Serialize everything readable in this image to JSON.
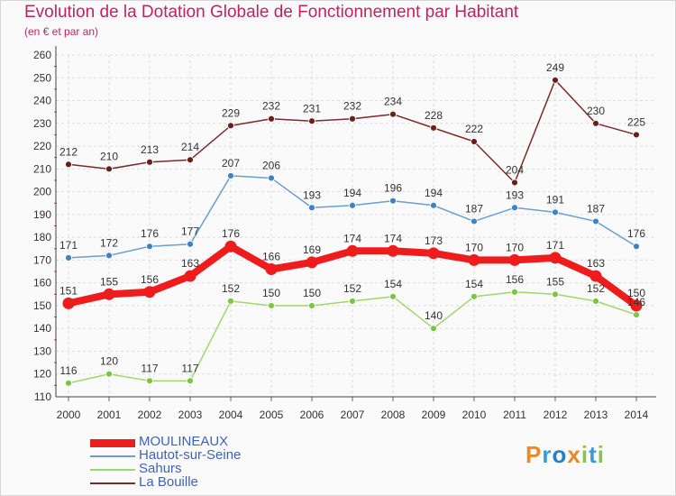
{
  "header": {
    "title": "Evolution de la Dotation Globale de Fonctionnement par Habitant",
    "subtitle": "(en € et par an)"
  },
  "logo": {
    "text": "Proxiti",
    "letters": [
      "P",
      "r",
      "o",
      "x",
      "i",
      "t",
      "i"
    ],
    "colors": [
      "#e8892a",
      "#3b9ad9",
      "#2a7fc4",
      "#e8892a",
      "#8bc34a",
      "#3b9ad9",
      "#8bc34a"
    ]
  },
  "chart_data": {
    "type": "line",
    "title": "Evolution de la Dotation Globale de Fonctionnement par Habitant",
    "subtitle": "(en € et par an)",
    "x": [
      "2000",
      "2001",
      "2002",
      "2003",
      "2004",
      "2005",
      "2006",
      "2007",
      "2008",
      "2009",
      "2010",
      "2011",
      "2012",
      "2013",
      "2014"
    ],
    "ylim": [
      110,
      260
    ],
    "yticks": [
      110,
      120,
      130,
      140,
      150,
      160,
      170,
      180,
      190,
      200,
      210,
      220,
      230,
      240,
      250,
      260
    ],
    "grid": true,
    "legend_position": "bottom-left",
    "series": [
      {
        "name": "MOULINEAUX",
        "color": "#ee1c1c",
        "marker_color": "#ee1c1c",
        "bold": true,
        "values": [
          151,
          155,
          156,
          163,
          176,
          166,
          169,
          174,
          174,
          173,
          170,
          170,
          171,
          163,
          150
        ]
      },
      {
        "name": "Hautot-sur-Seine",
        "color": "#6a9fd0",
        "marker_color": "#3f83c6",
        "bold": false,
        "values": [
          171,
          172,
          176,
          177,
          207,
          206,
          193,
          194,
          196,
          194,
          187,
          193,
          191,
          187,
          176
        ]
      },
      {
        "name": "Sahurs",
        "color": "#9ed86b",
        "marker_color": "#7cc444",
        "bold": false,
        "values": [
          116,
          120,
          117,
          117,
          152,
          150,
          150,
          152,
          154,
          140,
          154,
          156,
          155,
          152,
          146
        ]
      },
      {
        "name": "La Bouille",
        "color": "#7b2b2b",
        "marker_color": "#6a1f1f",
        "bold": false,
        "values": [
          212,
          210,
          213,
          214,
          229,
          232,
          231,
          232,
          234,
          228,
          222,
          204,
          249,
          230,
          225
        ]
      }
    ],
    "data_labels": {
      "MOULINEAUX": [
        "151",
        "155",
        "156",
        "163",
        "176",
        "166",
        "169",
        "174",
        "174",
        "173",
        "170",
        "170",
        "171",
        "163",
        "150"
      ],
      "Hautot-sur-Seine": [
        "171",
        "172",
        "176",
        "177",
        "207",
        "206",
        "193",
        "194",
        "196",
        "194",
        "187",
        "193",
        "191",
        "187",
        "176"
      ],
      "Sahurs": [
        "116",
        "120",
        "117",
        "117",
        "152",
        "150",
        "150",
        "152",
        "154",
        "140",
        "154",
        "156",
        "155",
        "152",
        "146"
      ],
      "La Bouille": [
        "212",
        "210",
        "213",
        "214",
        "229",
        "232",
        "231",
        "232",
        "234",
        "228",
        "222",
        "204",
        "249",
        "230",
        "225"
      ]
    }
  }
}
